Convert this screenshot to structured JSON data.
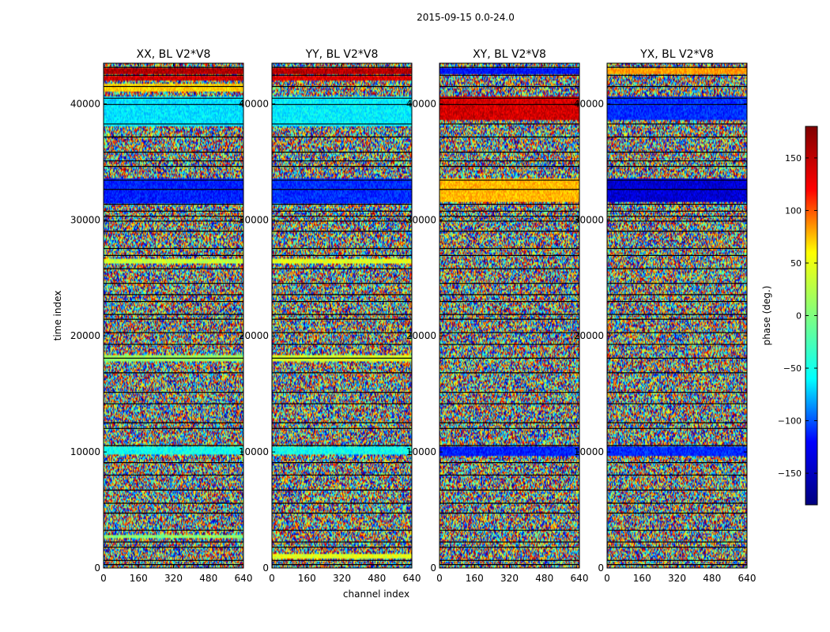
{
  "figure": {
    "suptitle": "2015-09-15 0.0-24.0"
  },
  "chart_data": [
    {
      "type": "heatmap",
      "title": "XX, BL V2*V8",
      "xlabel": "",
      "ylabel": "time index",
      "xlim": [
        0,
        640
      ],
      "ylim": [
        0,
        43500
      ],
      "xticks": [
        0,
        160,
        320,
        480,
        640
      ],
      "yticks": [
        0,
        10000,
        20000,
        30000,
        40000
      ],
      "flagged_bands": [
        {
          "t0": 42600,
          "t1": 43100,
          "phase": 165
        },
        {
          "t0": 42000,
          "t1": 42400,
          "phase": 150
        },
        {
          "t0": 41000,
          "t1": 41700,
          "phase": 60
        },
        {
          "t0": 38000,
          "t1": 40600,
          "phase": -55
        },
        {
          "t0": 31400,
          "t1": 33600,
          "phase": -125
        },
        {
          "t0": 26300,
          "t1": 26700,
          "phase": 25
        },
        {
          "t0": 17800,
          "t1": 18300,
          "phase": 10
        },
        {
          "t0": 9800,
          "t1": 10500,
          "phase": -40
        },
        {
          "t0": 2600,
          "t1": 2900,
          "phase": 5
        }
      ]
    },
    {
      "type": "heatmap",
      "title": "YY, BL V2*V8",
      "xlabel": "channel index",
      "ylabel": "",
      "xlim": [
        0,
        640
      ],
      "ylim": [
        0,
        43500
      ],
      "xticks": [
        0,
        160,
        320,
        480,
        640
      ],
      "yticks": [
        0,
        10000,
        20000,
        30000,
        40000
      ],
      "flagged_bands": [
        {
          "t0": 42600,
          "t1": 43100,
          "phase": 160
        },
        {
          "t0": 42000,
          "t1": 42400,
          "phase": 145
        },
        {
          "t0": 38000,
          "t1": 40600,
          "phase": -50
        },
        {
          "t0": 31400,
          "t1": 33600,
          "phase": -120
        },
        {
          "t0": 26300,
          "t1": 26700,
          "phase": 35
        },
        {
          "t0": 17800,
          "t1": 18300,
          "phase": 30
        },
        {
          "t0": 9800,
          "t1": 10500,
          "phase": -40
        },
        {
          "t0": 800,
          "t1": 1200,
          "phase": 35
        }
      ]
    },
    {
      "type": "heatmap",
      "title": "XY, BL V2*V8",
      "xlabel": "",
      "ylabel": "",
      "xlim": [
        0,
        640
      ],
      "ylim": [
        0,
        43500
      ],
      "xticks": [
        0,
        160,
        320,
        480,
        640
      ],
      "yticks": [
        0,
        10000,
        20000,
        30000,
        40000
      ],
      "flagged_bands": [
        {
          "t0": 42600,
          "t1": 43100,
          "phase": -130
        },
        {
          "t0": 38600,
          "t1": 40600,
          "phase": 150
        },
        {
          "t0": 31600,
          "t1": 33600,
          "phase": 70
        },
        {
          "t0": 9600,
          "t1": 10500,
          "phase": -125
        }
      ]
    },
    {
      "type": "heatmap",
      "title": "YX, BL V2*V8",
      "xlabel": "",
      "ylabel": "",
      "xlim": [
        0,
        640
      ],
      "ylim": [
        0,
        43500
      ],
      "xticks": [
        0,
        160,
        320,
        480,
        640
      ],
      "yticks": [
        0,
        10000,
        20000,
        30000,
        40000
      ],
      "flagged_bands": [
        {
          "t0": 42600,
          "t1": 43100,
          "phase": 80
        },
        {
          "t0": 38600,
          "t1": 40600,
          "phase": -120
        },
        {
          "t0": 31600,
          "t1": 33600,
          "phase": -150
        },
        {
          "t0": 9600,
          "t1": 10500,
          "phase": -120
        }
      ]
    }
  ],
  "colorbar": {
    "label": "phase (deg.)",
    "vmin": -180,
    "vmax": 180,
    "ticks": [
      150,
      100,
      50,
      0,
      -50,
      -100,
      -150
    ],
    "tick_labels": [
      "150",
      "100",
      "50",
      "0",
      "−50",
      "−100",
      "−150"
    ],
    "colormap": "jet",
    "colormap_stops": [
      "#00007f",
      "#0000ff",
      "#00ffff",
      "#7fff7f",
      "#ffff00",
      "#ff0000",
      "#7f0000"
    ]
  }
}
